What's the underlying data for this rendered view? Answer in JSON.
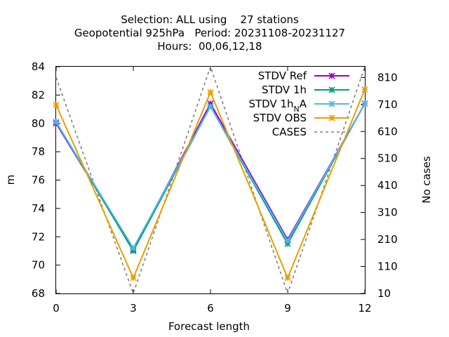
{
  "chart_data": {
    "type": "line",
    "title_lines": [
      "Selection: ALL using    27 stations",
      "Geopotential 925hPa   Period: 20231108-20231127",
      "Hours:  00,06,12,18"
    ],
    "xlabel": "Forecast length",
    "ylabel": "m",
    "y2label": "No cases",
    "x": [
      0,
      3,
      6,
      9,
      12
    ],
    "xlim": [
      0,
      12
    ],
    "ylim": [
      68,
      84
    ],
    "y2lim": [
      10,
      850
    ],
    "x_ticks": [
      "0",
      "3",
      "6",
      "9",
      "12"
    ],
    "y_ticks": [
      "68",
      "70",
      "72",
      "74",
      "76",
      "78",
      "80",
      "82",
      "84"
    ],
    "y2_ticks": [
      "10",
      "110",
      "210",
      "310",
      "410",
      "510",
      "610",
      "710",
      "810"
    ],
    "grid": false,
    "legend_position": "top-right",
    "series": [
      {
        "name": "STDV Ref",
        "label_main": "STDV Ref",
        "label_sub": "",
        "label_tail": "",
        "color": "#9400d3",
        "dashed": false,
        "marker": true,
        "axis": "y",
        "values": [
          80.0,
          71.1,
          81.4,
          71.8,
          81.4
        ]
      },
      {
        "name": "STDV 1h",
        "label_main": "STDV 1h",
        "label_sub": "",
        "label_tail": "",
        "color": "#009e73",
        "dashed": false,
        "marker": true,
        "axis": "y",
        "values": [
          80.1,
          71.0,
          81.2,
          71.5,
          81.4
        ]
      },
      {
        "name": "STDV 1h_NA",
        "label_main": "STDV 1h",
        "label_sub": "N",
        "label_tail": "A",
        "color": "#56b4e9",
        "dashed": false,
        "marker": true,
        "axis": "y",
        "values": [
          80.1,
          71.2,
          81.2,
          71.7,
          81.4
        ]
      },
      {
        "name": "STDV OBS",
        "label_main": "STDV OBS",
        "label_sub": "",
        "label_tail": "",
        "color": "#e69f00",
        "dashed": false,
        "marker": true,
        "axis": "y",
        "values": [
          81.3,
          69.1,
          82.2,
          69.1,
          82.4
        ]
      },
      {
        "name": "CASES",
        "label_main": "CASES",
        "label_sub": "",
        "label_tail": "",
        "color": "#808080",
        "dashed": true,
        "marker": false,
        "axis": "y2",
        "values": [
          810,
          10,
          850,
          10,
          850
        ]
      }
    ]
  }
}
